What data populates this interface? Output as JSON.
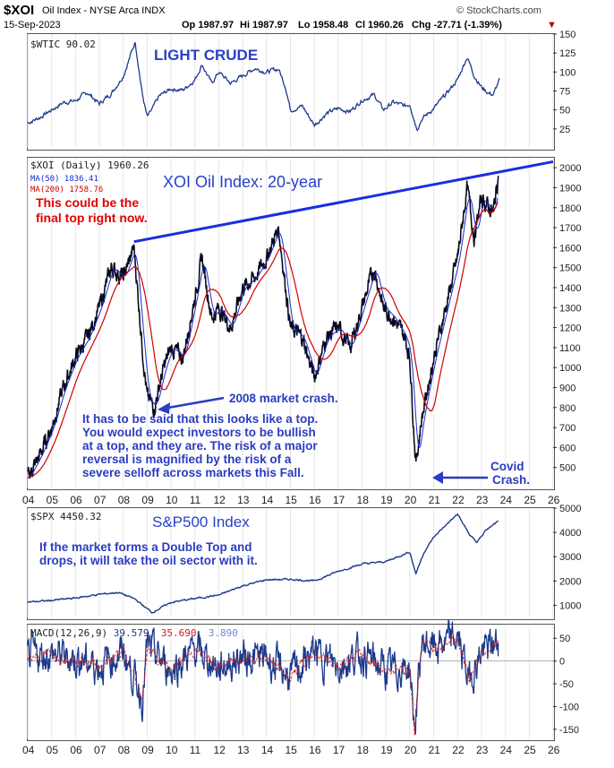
{
  "header": {
    "symbol": "$XOI",
    "name": "Oil Index - NYSE Arca INDX",
    "watermark": "© StockCharts.com",
    "date": "15-Sep-2023",
    "open": "Op 1987.97",
    "high": "Hi 1987.97",
    "low": "Lo 1958.48",
    "close": "Cl 1960.26",
    "change": "Chg -27.71 (-1.39%)",
    "change_arrow": "▼"
  },
  "colors": {
    "price": "#0a0a1e",
    "blue_series": "#1c3a8c",
    "ma50": "#1a2bd0",
    "ma200": "#d00000",
    "annotation_blue": "#2a3cc0",
    "annotation_red": "#e00000",
    "trendline": "#1a2ee0",
    "signal": "#d02020"
  },
  "panels": {
    "crude": {
      "legend": "$WTIC 90.02",
      "title": "LIGHT CRUDE"
    },
    "xoi": {
      "legend": "$XOI (Daily) 1960.26",
      "ma50_legend": "MA(50) 1836.41",
      "ma200_legend": "MA(200) 1758.76",
      "title": "XOI Oil Index: 20-year",
      "note_top": [
        "This could be the",
        "final top right now."
      ],
      "note_crash": "2008 market crash.",
      "note_body": [
        "It has to     be said that this looks like a top.",
        "You would expect investors to be bullish",
        "at a top, and they are. The risk of a major",
        "reversal is magnified by the risk of a",
        "severe selloff across markets this Fall."
      ],
      "note_covid": [
        "Covid",
        "Crash."
      ]
    },
    "spx": {
      "legend": "$SPX 4450.32",
      "title": "S&P500 Index",
      "note": [
        "If the market forms a Double Top and",
        "drops, it will take the oil sector with it."
      ]
    },
    "macd": {
      "legend_label": "MACD(12,26,9)",
      "macd_value": "39.579",
      "signal_value": "35.690",
      "hist_value": "3.890"
    }
  },
  "chart_data": [
    {
      "type": "line",
      "name": "crude",
      "title": "LIGHT CRUDE",
      "x": [
        2004.0,
        2004.5,
        2005.0,
        2005.5,
        2006.0,
        2006.5,
        2007.0,
        2007.5,
        2008.0,
        2008.5,
        2008.8,
        2009.0,
        2009.2,
        2009.5,
        2010.0,
        2010.5,
        2011.0,
        2011.3,
        2011.7,
        2012.0,
        2012.5,
        2013.0,
        2013.5,
        2014.0,
        2014.5,
        2014.8,
        2015.0,
        2015.5,
        2016.0,
        2016.5,
        2017.0,
        2017.5,
        2018.0,
        2018.5,
        2018.9,
        2019.3,
        2019.8,
        2020.0,
        2020.3,
        2020.5,
        2021.0,
        2021.5,
        2022.0,
        2022.4,
        2022.7,
        2023.0,
        2023.3,
        2023.5,
        2023.75
      ],
      "values": [
        33,
        40,
        50,
        60,
        62,
        73,
        58,
        72,
        95,
        140,
        70,
        40,
        50,
        68,
        78,
        76,
        90,
        110,
        85,
        100,
        85,
        95,
        105,
        100,
        104,
        80,
        50,
        55,
        30,
        45,
        52,
        48,
        63,
        70,
        50,
        60,
        55,
        58,
        25,
        38,
        52,
        70,
        90,
        120,
        95,
        80,
        72,
        70,
        90
      ],
      "ylim": [
        0,
        150
      ],
      "yticks": [
        25,
        50,
        75,
        100,
        125,
        150
      ]
    },
    {
      "type": "line",
      "name": "xoi",
      "title": "XOI Oil Index: 20-year",
      "x": [
        2004.0,
        2004.5,
        2005.0,
        2005.5,
        2006.0,
        2006.5,
        2007.0,
        2007.5,
        2008.0,
        2008.45,
        2008.8,
        2009.0,
        2009.3,
        2009.7,
        2010.0,
        2010.5,
        2011.0,
        2011.3,
        2011.7,
        2012.0,
        2012.5,
        2013.0,
        2013.5,
        2014.0,
        2014.5,
        2014.8,
        2015.0,
        2015.5,
        2016.0,
        2016.5,
        2017.0,
        2017.5,
        2018.0,
        2018.5,
        2018.9,
        2019.3,
        2019.8,
        2020.0,
        2020.25,
        2020.5,
        2021.0,
        2021.5,
        2022.0,
        2022.4,
        2022.7,
        2023.0,
        2023.3,
        2023.5,
        2023.7
      ],
      "values": [
        450,
        560,
        700,
        900,
        1050,
        1150,
        1300,
        1500,
        1450,
        1600,
        1100,
        850,
        800,
        1000,
        1100,
        1050,
        1350,
        1550,
        1250,
        1300,
        1200,
        1400,
        1450,
        1550,
        1700,
        1400,
        1200,
        1150,
        950,
        1150,
        1200,
        1100,
        1300,
        1500,
        1300,
        1250,
        1150,
        1050,
        520,
        750,
        1050,
        1300,
        1550,
        1900,
        1650,
        1850,
        1800,
        1780,
        1960
      ],
      "ylim": [
        400,
        2050
      ],
      "yticks": [
        500,
        600,
        700,
        800,
        900,
        1000,
        1100,
        1200,
        1300,
        1400,
        1500,
        1600,
        1700,
        1800,
        1900,
        2000
      ],
      "trendline": {
        "x": [
          2008.45,
          2026.0
        ],
        "values": [
          1630,
          2030
        ]
      }
    },
    {
      "type": "line",
      "name": "spx",
      "title": "S&P500 Index",
      "x": [
        2004,
        2005,
        2006,
        2007,
        2007.8,
        2008.5,
        2009.2,
        2010,
        2011,
        2012,
        2013,
        2014,
        2015,
        2016,
        2017,
        2018,
        2019,
        2020,
        2020.25,
        2020.6,
        2021,
        2021.5,
        2022.0,
        2022.5,
        2022.8,
        2023.2,
        2023.7
      ],
      "values": [
        1130,
        1200,
        1300,
        1450,
        1530,
        1250,
        700,
        1120,
        1280,
        1420,
        1800,
        2050,
        2070,
        2000,
        2400,
        2700,
        2800,
        3200,
        2300,
        3200,
        3800,
        4300,
        4750,
        3900,
        3600,
        4100,
        4450
      ],
      "ylim": [
        500,
        5000
      ],
      "yticks": [
        1000,
        2000,
        3000,
        4000,
        5000
      ]
    },
    {
      "type": "line",
      "name": "macd",
      "legend": [
        "MACD(12,26,9)"
      ],
      "x": [
        2004,
        2005,
        2006,
        2007,
        2008,
        2008.8,
        2009,
        2010,
        2011,
        2012,
        2013,
        2014,
        2015,
        2016,
        2017,
        2018,
        2019,
        2020,
        2020.2,
        2020.5,
        2021,
        2022,
        2022.5,
        2023,
        2023.7
      ],
      "values": [
        10,
        15,
        5,
        -10,
        20,
        -80,
        30,
        -20,
        25,
        -15,
        10,
        5,
        -35,
        20,
        -10,
        15,
        -20,
        -15,
        -150,
        40,
        30,
        50,
        -40,
        20,
        39.579
      ],
      "ylim": [
        -170,
        80
      ],
      "yticks": [
        -150,
        -100,
        -50,
        0,
        50
      ]
    }
  ],
  "x_axis": {
    "years": [
      "04",
      "05",
      "06",
      "07",
      "08",
      "09",
      "10",
      "11",
      "12",
      "13",
      "14",
      "15",
      "16",
      "17",
      "18",
      "19",
      "20",
      "21",
      "22",
      "23",
      "24",
      "25",
      "26"
    ]
  }
}
